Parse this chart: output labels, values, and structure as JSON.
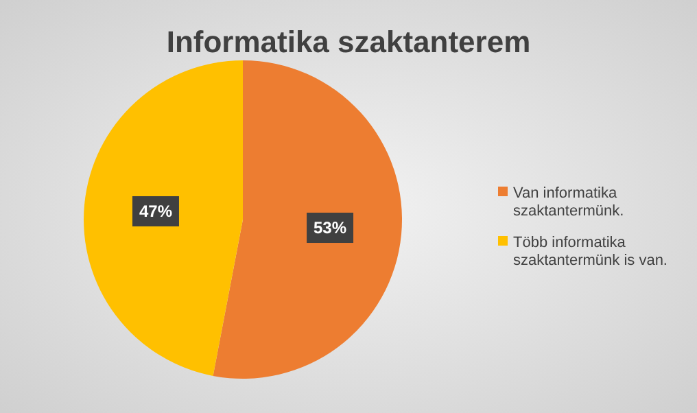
{
  "chart_data": {
    "type": "pie",
    "title": "Informatika szaktanterem",
    "categories": [
      "Van informatika szaktantermünk.",
      "Több informatika szaktantermünk is van."
    ],
    "values": [
      53,
      47
    ],
    "colors": [
      "#ed7d31",
      "#ffc000"
    ],
    "value_labels": [
      "53%",
      "47%"
    ],
    "legend": "right"
  }
}
